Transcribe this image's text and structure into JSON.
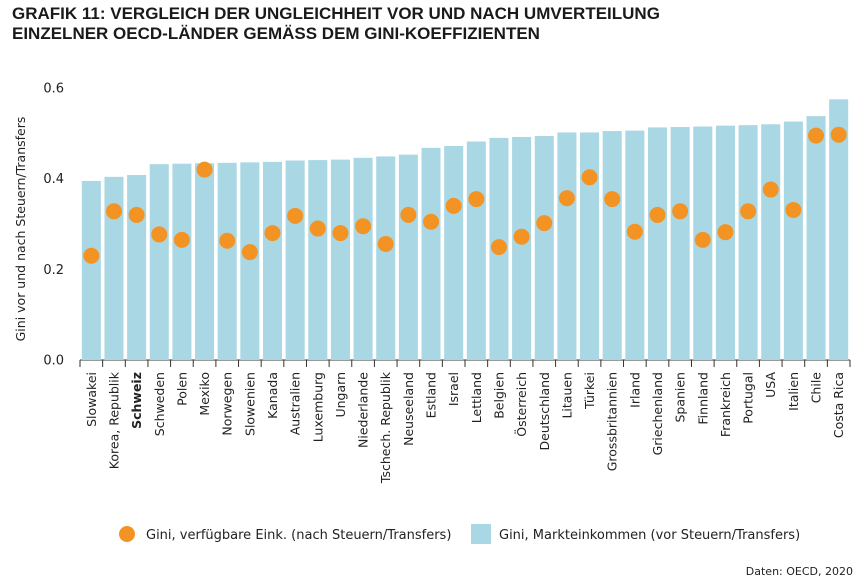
{
  "chart_data": {
    "type": "bar",
    "title": "GRAFIK 11: VERGLEICH DER UNGLEICHHEIT VOR UND NACH UMVERTEILUNG EINZELNER OECD-LÄNDER GEMÄSS DEM GINI-KOEFFIZIENTEN",
    "ylabel": "Gini vor und nach Steuern/Transfers",
    "xlabel": "",
    "ylim": [
      0,
      0.6
    ],
    "yticks": [
      "0.0",
      "0.2",
      "0.4",
      "0.6"
    ],
    "highlight_category": "Schweiz",
    "categories": [
      "Slowakei",
      "Korea, Republik",
      "Schweiz",
      "Schweden",
      "Polen",
      "Mexiko",
      "Norwegen",
      "Slowenien",
      "Kanada",
      "Australien",
      "Luxemburg",
      "Ungarn",
      "Niederlande",
      "Tschech. Republik",
      "Neuseeland",
      "Estland",
      "Israel",
      "Lettland",
      "Belgien",
      "Österreich",
      "Deutschland",
      "Litauen",
      "Türkei",
      "Grossbritannien",
      "Irland",
      "Griechenland",
      "Spanien",
      "Finnland",
      "Frankreich",
      "Portugal",
      "USA",
      "Italien",
      "Chile",
      "Costa Rica"
    ],
    "series": [
      {
        "name": "Gini, Markteinkommen (vor Steuern/Transfers)",
        "kind": "bar",
        "color": "#a9d7e3",
        "values": [
          0.395,
          0.404,
          0.408,
          0.432,
          0.433,
          0.434,
          0.435,
          0.436,
          0.437,
          0.44,
          0.441,
          0.442,
          0.446,
          0.449,
          0.453,
          0.468,
          0.472,
          0.482,
          0.49,
          0.492,
          0.494,
          0.502,
          0.502,
          0.505,
          0.506,
          0.513,
          0.514,
          0.515,
          0.517,
          0.518,
          0.52,
          0.526,
          0.538,
          0.575
        ]
      },
      {
        "name": "Gini, verfügbare Eink. (nach Steuern/Transfers)",
        "kind": "dot",
        "color": "#f39323",
        "values": [
          0.23,
          0.328,
          0.32,
          0.277,
          0.265,
          0.42,
          0.263,
          0.238,
          0.28,
          0.318,
          0.29,
          0.28,
          0.295,
          0.256,
          0.32,
          0.305,
          0.34,
          0.355,
          0.249,
          0.272,
          0.302,
          0.357,
          0.403,
          0.355,
          0.283,
          0.32,
          0.328,
          0.265,
          0.282,
          0.328,
          0.376,
          0.331,
          0.495,
          0.497
        ]
      }
    ],
    "legend": {
      "placement": "bottom",
      "items": [
        {
          "label": "Gini, verfügbare Eink. (nach Steuern/Transfers)",
          "shape": "circle",
          "color": "#f39323"
        },
        {
          "label": "Gini, Markteinkommen (vor Steuern/Transfers)",
          "shape": "square",
          "color": "#a9d7e3"
        }
      ]
    },
    "source": "Daten: OECD, 2020"
  }
}
